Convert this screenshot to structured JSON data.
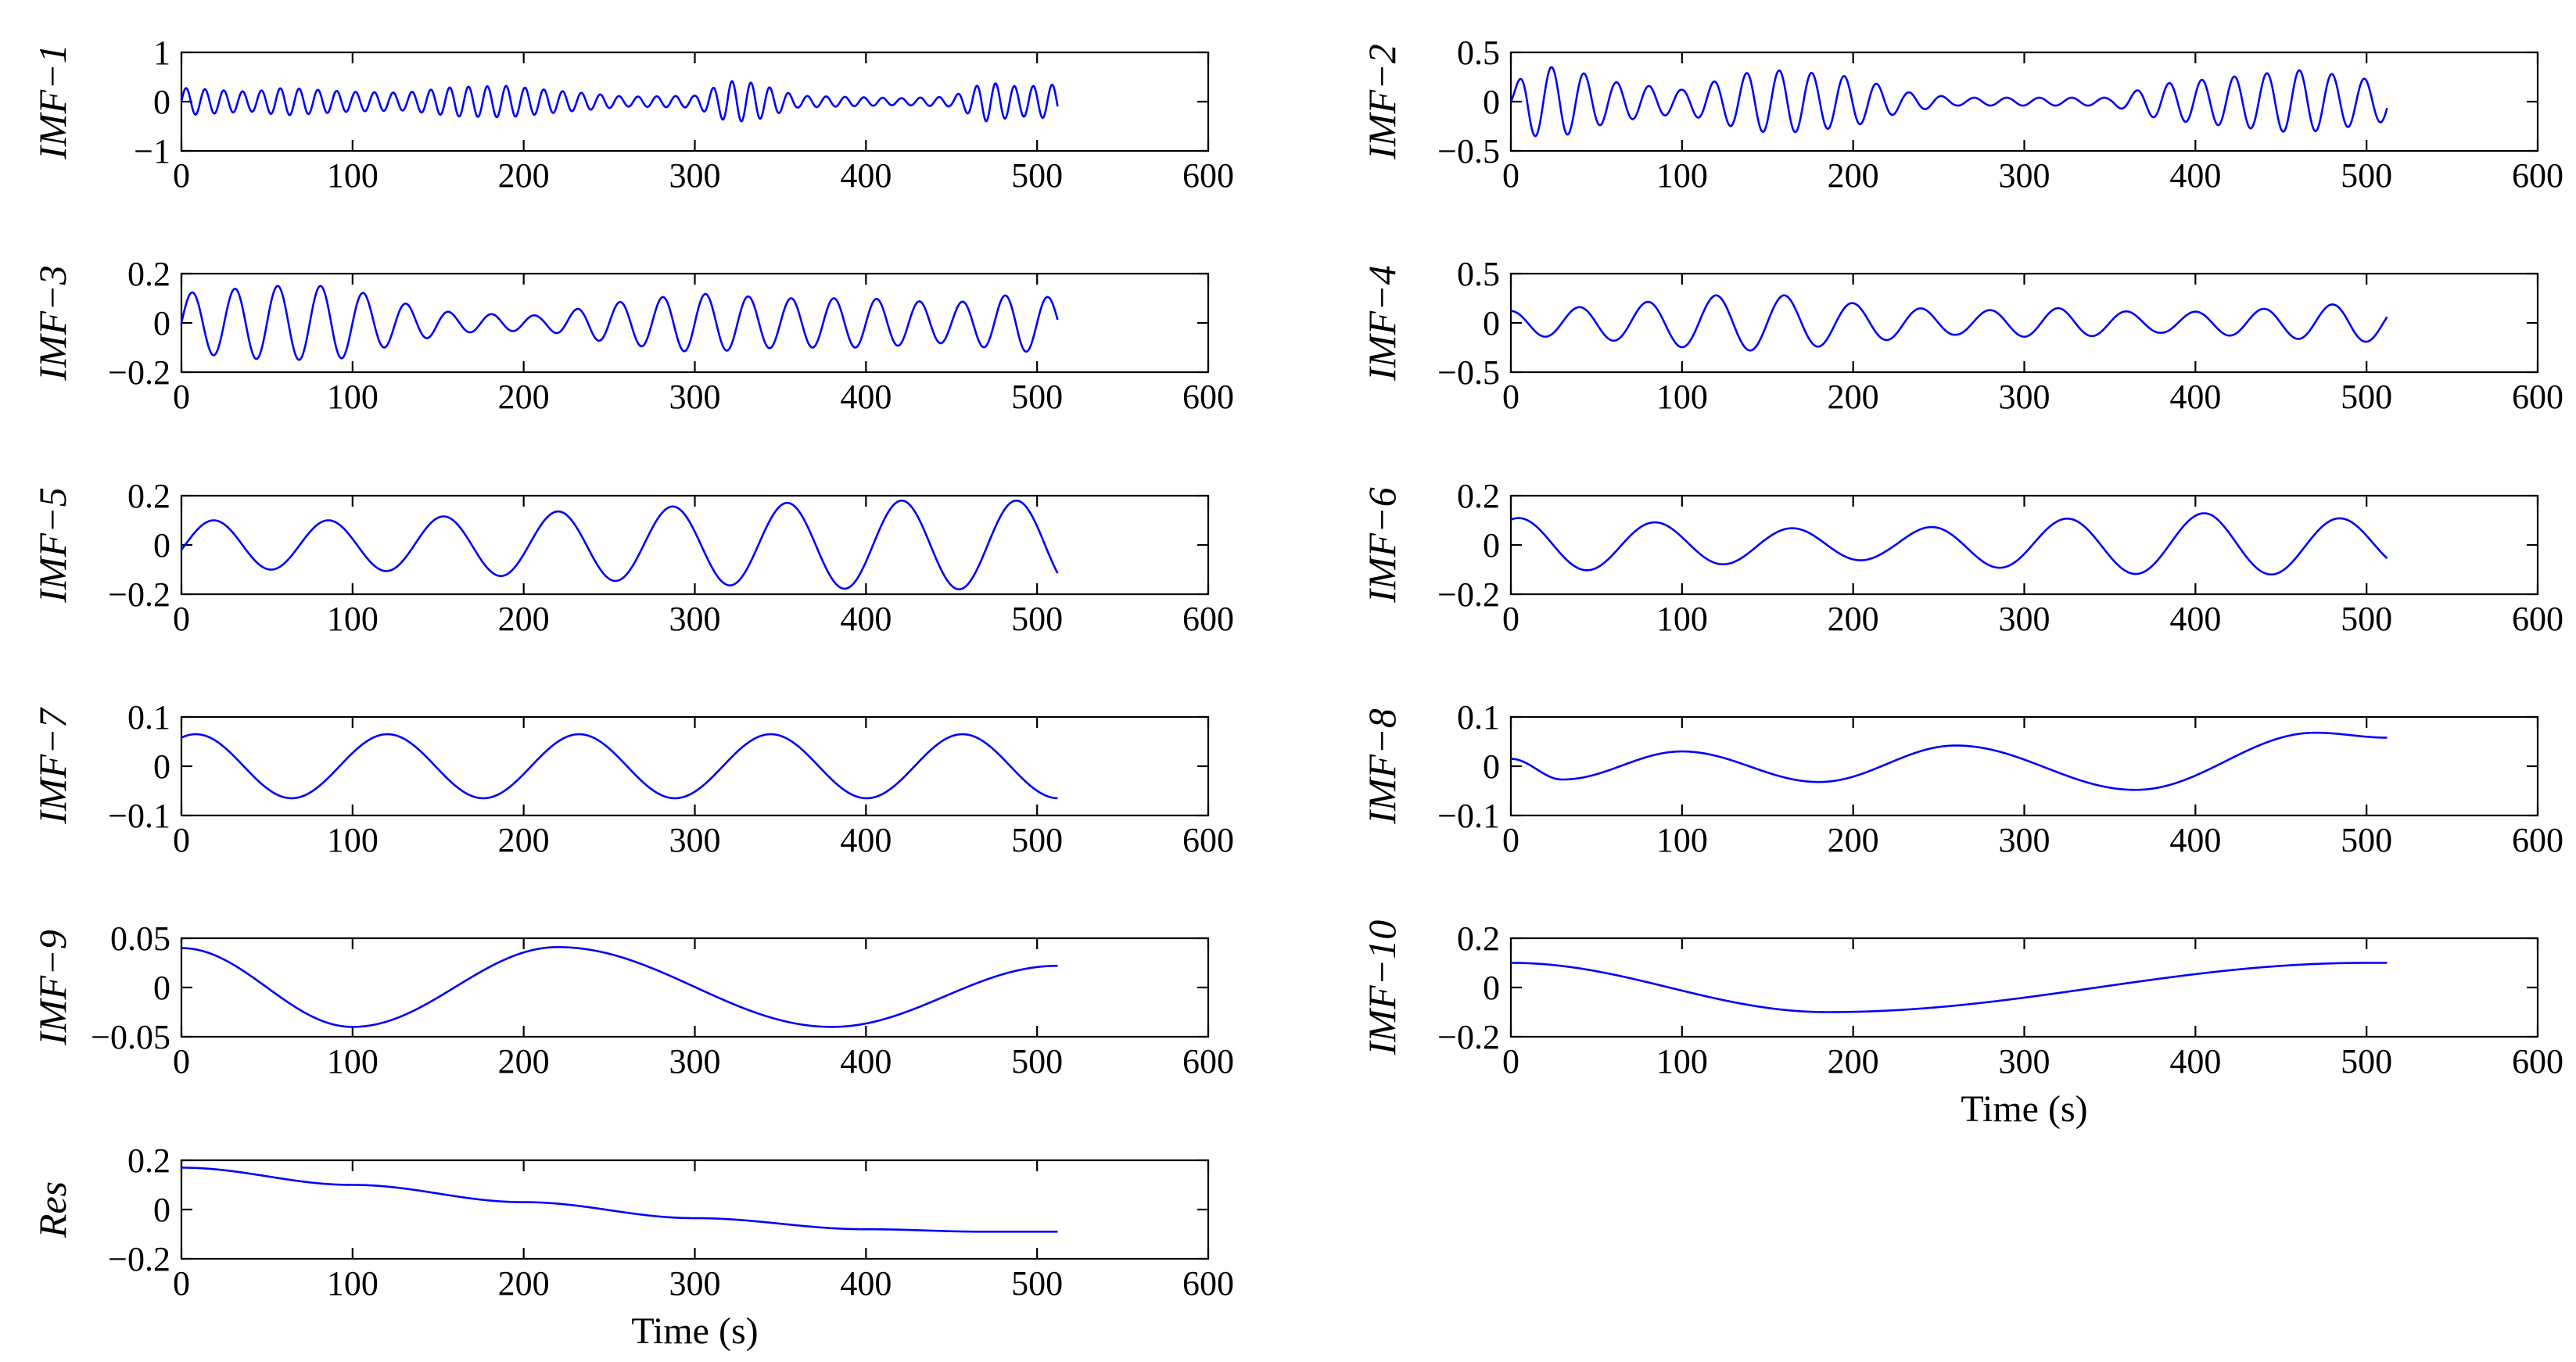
{
  "line_color": "#0000ff",
  "chart_data": [
    {
      "type": "line",
      "ylabel": "IMF−1",
      "xlabel": "",
      "xlim": [
        0,
        600
      ],
      "ylim": [
        -1,
        1
      ],
      "xticks": [
        0,
        100,
        200,
        300,
        400,
        500,
        600
      ],
      "yticks": [
        -1,
        0,
        1
      ],
      "signal": {
        "x_end": 512,
        "mode": "osc",
        "period": 11,
        "env": [
          [
            0,
            0.28
          ],
          [
            40,
            0.2
          ],
          [
            60,
            0.28
          ],
          [
            100,
            0.2
          ],
          [
            130,
            0.18
          ],
          [
            160,
            0.3
          ],
          [
            190,
            0.32
          ],
          [
            220,
            0.22
          ],
          [
            260,
            0.1
          ],
          [
            300,
            0.12
          ],
          [
            320,
            0.42
          ],
          [
            335,
            0.38
          ],
          [
            360,
            0.12
          ],
          [
            420,
            0.07
          ],
          [
            450,
            0.1
          ],
          [
            470,
            0.4
          ],
          [
            490,
            0.3
          ],
          [
            512,
            0.35
          ]
        ]
      }
    },
    {
      "type": "line",
      "ylabel": "IMF−2",
      "xlabel": "",
      "xlim": [
        0,
        600
      ],
      "ylim": [
        -0.5,
        0.5
      ],
      "xticks": [
        0,
        100,
        200,
        300,
        400,
        500,
        600
      ],
      "yticks": [
        -0.5,
        0,
        0.5
      ],
      "signal": {
        "x_end": 512,
        "mode": "osc",
        "period": 19,
        "env": [
          [
            0,
            0.1
          ],
          [
            10,
            0.35
          ],
          [
            30,
            0.35
          ],
          [
            60,
            0.2
          ],
          [
            100,
            0.12
          ],
          [
            140,
            0.3
          ],
          [
            160,
            0.32
          ],
          [
            200,
            0.25
          ],
          [
            230,
            0.1
          ],
          [
            260,
            0.04
          ],
          [
            350,
            0.04
          ],
          [
            380,
            0.18
          ],
          [
            420,
            0.25
          ],
          [
            460,
            0.32
          ],
          [
            480,
            0.28
          ],
          [
            512,
            0.2
          ]
        ]
      }
    },
    {
      "type": "line",
      "ylabel": "IMF−3",
      "xlabel": "",
      "xlim": [
        0,
        600
      ],
      "ylim": [
        -0.2,
        0.2
      ],
      "xticks": [
        0,
        100,
        200,
        300,
        400,
        500,
        600
      ],
      "yticks": [
        -0.2,
        0,
        0.2
      ],
      "signal": {
        "x_end": 512,
        "mode": "osc",
        "period": 25,
        "env": [
          [
            0,
            0.12
          ],
          [
            50,
            0.15
          ],
          [
            90,
            0.15
          ],
          [
            130,
            0.08
          ],
          [
            160,
            0.04
          ],
          [
            210,
            0.03
          ],
          [
            250,
            0.08
          ],
          [
            300,
            0.12
          ],
          [
            350,
            0.1
          ],
          [
            400,
            0.1
          ],
          [
            450,
            0.08
          ],
          [
            490,
            0.12
          ],
          [
            512,
            0.1
          ]
        ]
      }
    },
    {
      "type": "line",
      "ylabel": "IMF−4",
      "xlabel": "",
      "xlim": [
        0,
        600
      ],
      "ylim": [
        -0.5,
        0.5
      ],
      "xticks": [
        0,
        100,
        200,
        300,
        400,
        500,
        600
      ],
      "yticks": [
        -0.5,
        0,
        0.5
      ],
      "signal": {
        "x_end": 512,
        "mode": "osc",
        "period": 40,
        "phase": 1.6,
        "env": [
          [
            0,
            0.12
          ],
          [
            60,
            0.18
          ],
          [
            120,
            0.28
          ],
          [
            160,
            0.28
          ],
          [
            200,
            0.2
          ],
          [
            260,
            0.12
          ],
          [
            320,
            0.15
          ],
          [
            380,
            0.1
          ],
          [
            450,
            0.15
          ],
          [
            490,
            0.2
          ],
          [
            512,
            0.18
          ]
        ]
      }
    },
    {
      "type": "line",
      "ylabel": "IMF−5",
      "xlabel": "",
      "xlim": [
        0,
        600
      ],
      "ylim": [
        -0.2,
        0.2
      ],
      "xticks": [
        0,
        100,
        200,
        300,
        400,
        500,
        600
      ],
      "yticks": [
        -0.2,
        0,
        0.2
      ],
      "signal": {
        "x_end": 512,
        "mode": "osc",
        "period": 67,
        "phase": -0.2,
        "env": [
          [
            0,
            0.1
          ],
          [
            100,
            0.1
          ],
          [
            200,
            0.13
          ],
          [
            300,
            0.16
          ],
          [
            400,
            0.18
          ],
          [
            512,
            0.18
          ]
        ]
      }
    },
    {
      "type": "line",
      "ylabel": "IMF−6",
      "xlabel": "",
      "xlim": [
        0,
        600
      ],
      "ylim": [
        -0.2,
        0.2
      ],
      "xticks": [
        0,
        100,
        200,
        300,
        400,
        500,
        600
      ],
      "yticks": [
        -0.2,
        0,
        0.2
      ],
      "signal": {
        "x_end": 512,
        "mode": "osc",
        "period": 80,
        "phase": 1.2,
        "env": [
          [
            0,
            0.11
          ],
          [
            60,
            0.1
          ],
          [
            150,
            0.07
          ],
          [
            220,
            0.06
          ],
          [
            300,
            0.1
          ],
          [
            410,
            0.13
          ],
          [
            512,
            0.1
          ]
        ]
      }
    },
    {
      "type": "line",
      "ylabel": "IMF−7",
      "xlabel": "",
      "xlim": [
        0,
        600
      ],
      "ylim": [
        -0.1,
        0.1
      ],
      "xticks": [
        0,
        100,
        200,
        300,
        400,
        500,
        600
      ],
      "yticks": [
        -0.1,
        0,
        0.1
      ],
      "signal": {
        "x_end": 512,
        "mode": "osc",
        "period": 112,
        "phase": 1.1,
        "env": [
          [
            0,
            0.065
          ],
          [
            512,
            0.065
          ]
        ]
      }
    },
    {
      "type": "line",
      "ylabel": "IMF−8",
      "xlabel": "",
      "xlim": [
        0,
        600
      ],
      "ylim": [
        -0.1,
        0.1
      ],
      "xticks": [
        0,
        100,
        200,
        300,
        400,
        500,
        600
      ],
      "yticks": [
        -0.1,
        0,
        0.1
      ],
      "signal": {
        "x_end": 512,
        "mode": "points",
        "points": [
          [
            0,
            0.015
          ],
          [
            30,
            -0.027
          ],
          [
            100,
            0.03
          ],
          [
            180,
            -0.032
          ],
          [
            260,
            0.042
          ],
          [
            365,
            -0.048
          ],
          [
            470,
            0.068
          ],
          [
            512,
            0.058
          ]
        ]
      }
    },
    {
      "type": "line",
      "ylabel": "IMF−9",
      "xlabel": "",
      "xlim": [
        0,
        600
      ],
      "ylim": [
        -0.05,
        0.05
      ],
      "xticks": [
        0,
        100,
        200,
        300,
        400,
        500,
        600
      ],
      "yticks": [
        -0.05,
        0,
        0.05
      ],
      "signal": {
        "x_end": 512,
        "mode": "points",
        "points": [
          [
            0,
            0.04
          ],
          [
            100,
            -0.04
          ],
          [
            220,
            0.041
          ],
          [
            380,
            -0.04
          ],
          [
            512,
            0.022
          ]
        ]
      }
    },
    {
      "type": "line",
      "ylabel": "IMF−10",
      "xlabel": "Time (s)",
      "xlim": [
        0,
        600
      ],
      "ylim": [
        -0.2,
        0.2
      ],
      "xticks": [
        0,
        100,
        200,
        300,
        400,
        500,
        600
      ],
      "yticks": [
        -0.2,
        0,
        0.2
      ],
      "signal": {
        "x_end": 512,
        "mode": "points",
        "points": [
          [
            0,
            0.1
          ],
          [
            185,
            -0.1
          ],
          [
            500,
            0.1
          ],
          [
            512,
            0.1
          ]
        ]
      }
    },
    {
      "type": "line",
      "ylabel": "Res",
      "xlabel": "Time (s)",
      "xlim": [
        0,
        600
      ],
      "ylim": [
        -0.2,
        0.2
      ],
      "xticks": [
        0,
        100,
        200,
        300,
        400,
        500,
        600
      ],
      "yticks": [
        -0.2,
        0,
        0.2
      ],
      "signal": {
        "x_end": 512,
        "mode": "points",
        "points": [
          [
            0,
            0.17
          ],
          [
            100,
            0.1
          ],
          [
            200,
            0.03
          ],
          [
            300,
            -0.035
          ],
          [
            400,
            -0.08
          ],
          [
            470,
            -0.09
          ],
          [
            512,
            -0.09
          ]
        ]
      }
    }
  ]
}
